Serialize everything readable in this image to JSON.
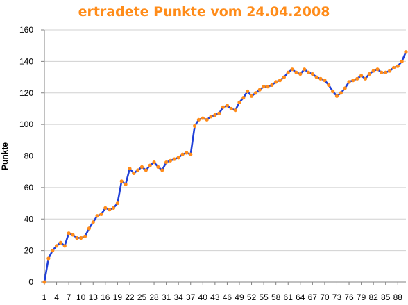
{
  "chart_data": {
    "type": "line",
    "title": "ertradete Punkte vom 24.04.2008",
    "xlabel": "",
    "ylabel": "Punkte",
    "ylim": [
      0,
      160
    ],
    "yticks": [
      0,
      20,
      40,
      60,
      80,
      100,
      120,
      140,
      160
    ],
    "xticks": [
      1,
      4,
      7,
      10,
      13,
      16,
      19,
      22,
      25,
      28,
      31,
      34,
      37,
      40,
      43,
      46,
      49,
      52,
      55,
      58,
      61,
      64,
      67,
      70,
      73,
      76,
      79,
      82,
      85,
      88
    ],
    "xlim": [
      1,
      90
    ],
    "grid": true,
    "legend": "none",
    "colors": {
      "line": "#1f3fd8",
      "marker": "#ff8c1a",
      "title": "#ff8c1a",
      "grid": "#d0d0d0",
      "axis": "#808080"
    },
    "x": [
      1,
      2,
      3,
      4,
      5,
      6,
      7,
      8,
      9,
      10,
      11,
      12,
      13,
      14,
      15,
      16,
      17,
      18,
      19,
      20,
      21,
      22,
      23,
      24,
      25,
      26,
      27,
      28,
      29,
      30,
      31,
      32,
      33,
      34,
      35,
      36,
      37,
      38,
      39,
      40,
      41,
      42,
      43,
      44,
      45,
      46,
      47,
      48,
      49,
      50,
      51,
      52,
      53,
      54,
      55,
      56,
      57,
      58,
      59,
      60,
      61,
      62,
      63,
      64,
      65,
      66,
      67,
      68,
      69,
      70,
      71,
      72,
      73,
      74,
      75,
      76,
      77,
      78,
      79,
      80,
      81,
      82,
      83,
      84,
      85,
      86,
      87,
      88,
      89,
      90
    ],
    "series": [
      {
        "values": [
          0,
          15,
          20,
          23,
          25,
          23,
          31,
          30,
          28,
          28,
          29,
          34,
          38,
          42,
          43,
          47,
          46,
          47,
          50,
          64,
          62,
          72,
          69,
          71,
          73,
          71,
          74,
          76,
          73,
          71,
          76,
          77,
          78,
          79,
          81,
          82,
          81,
          99,
          103,
          104,
          103,
          105,
          106,
          107,
          111,
          112,
          110,
          109,
          114,
          117,
          121,
          118,
          120,
          122,
          124,
          124,
          125,
          127,
          128,
          130,
          133,
          135,
          133,
          132,
          135,
          133,
          132,
          130,
          129,
          128,
          125,
          121,
          118,
          120,
          123,
          127,
          128,
          129,
          131,
          129,
          132,
          134,
          135,
          133,
          133,
          134,
          136,
          137,
          140,
          146
        ]
      }
    ]
  }
}
